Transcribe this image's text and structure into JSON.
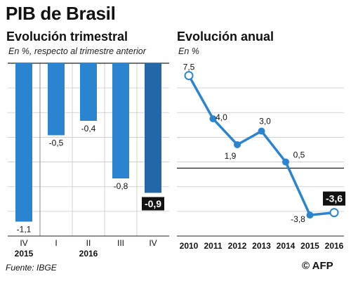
{
  "title": "PIB de Brasil",
  "source": "Fuente: IBGE",
  "credit": "© AFP",
  "colors": {
    "bar": "#2b84d0",
    "bar_highlight": "#2467a9",
    "line": "#2b84d0",
    "grid": "#c8c8c8",
    "axis": "#222222",
    "highlight_label_bg": "#111111",
    "highlight_label_text": "#ffffff"
  },
  "chart_data": [
    {
      "type": "bar",
      "title": "Evolución trimestral",
      "subtitle": "En %, respecto al trimestre anterior",
      "categories": [
        "IV",
        "I",
        "II",
        "III",
        "IV"
      ],
      "year_labels": [
        {
          "label": "2015",
          "category_index": 0
        },
        {
          "label": "2016",
          "category_index": 2
        }
      ],
      "values": [
        -1.1,
        -0.5,
        -0.4,
        -0.8,
        -0.9
      ],
      "value_labels": [
        "-1,1",
        "-0,5",
        "-0,4",
        "-0,8",
        "-0,9"
      ],
      "highlight_index": 4,
      "ylim": [
        -1.2,
        0
      ],
      "grid": true
    },
    {
      "type": "line",
      "title": "Evolución anual",
      "subtitle": "En %",
      "x": [
        "2010",
        "2011",
        "2012",
        "2013",
        "2014",
        "2015",
        "2016"
      ],
      "values": [
        7.5,
        4.0,
        1.9,
        3.0,
        0.5,
        -3.8,
        -3.6
      ],
      "value_labels": [
        "7,5",
        "4,0",
        "1,9",
        "3,0",
        "0,5",
        "-3,8",
        "-3,6"
      ],
      "highlight_index": 6,
      "ylim": [
        -5.5,
        8.5
      ],
      "grid": true
    }
  ]
}
